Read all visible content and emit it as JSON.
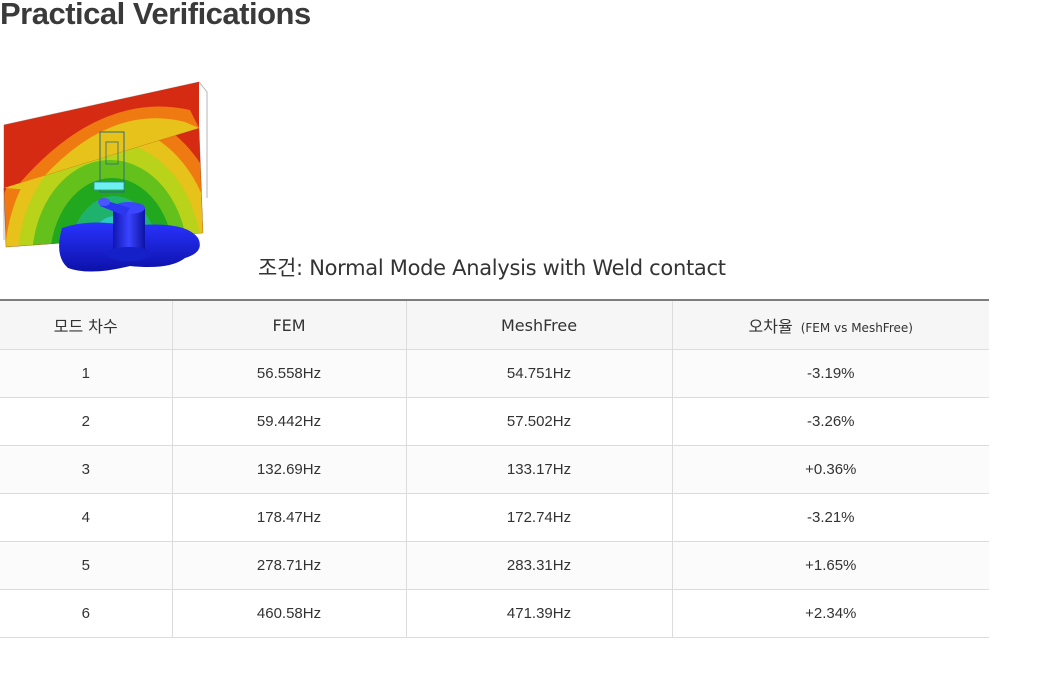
{
  "title": "Practical Verifications",
  "condition_text": "조건: Normal Mode Analysis with Weld contact",
  "table": {
    "headers": {
      "mode": "모드 차수",
      "fem": "FEM",
      "meshfree": "MeshFree",
      "error": "오차율",
      "error_note": "(FEM vs MeshFree)"
    },
    "rows": [
      {
        "mode": "1",
        "fem": "56.558Hz",
        "meshfree": "54.751Hz",
        "error": "-3.19%"
      },
      {
        "mode": "2",
        "fem": "59.442Hz",
        "meshfree": "57.502Hz",
        "error": "-3.26%"
      },
      {
        "mode": "3",
        "fem": "132.69Hz",
        "meshfree": "133.17Hz",
        "error": "+0.36%"
      },
      {
        "mode": "4",
        "fem": "178.47Hz",
        "meshfree": "172.74Hz",
        "error": "-3.21%"
      },
      {
        "mode": "5",
        "fem": "278.71Hz",
        "meshfree": "283.31Hz",
        "error": "+1.65%"
      },
      {
        "mode": "6",
        "fem": "460.58Hz",
        "meshfree": "471.39Hz",
        "error": "+2.34%"
      }
    ]
  },
  "colors": {
    "contour": [
      "#d42b12",
      "#f07a12",
      "#e6c21a",
      "#b9d21a",
      "#64c11c",
      "#22a81e",
      "#1fb26c",
      "#2cc7c2"
    ],
    "base": "#1a21d6"
  }
}
